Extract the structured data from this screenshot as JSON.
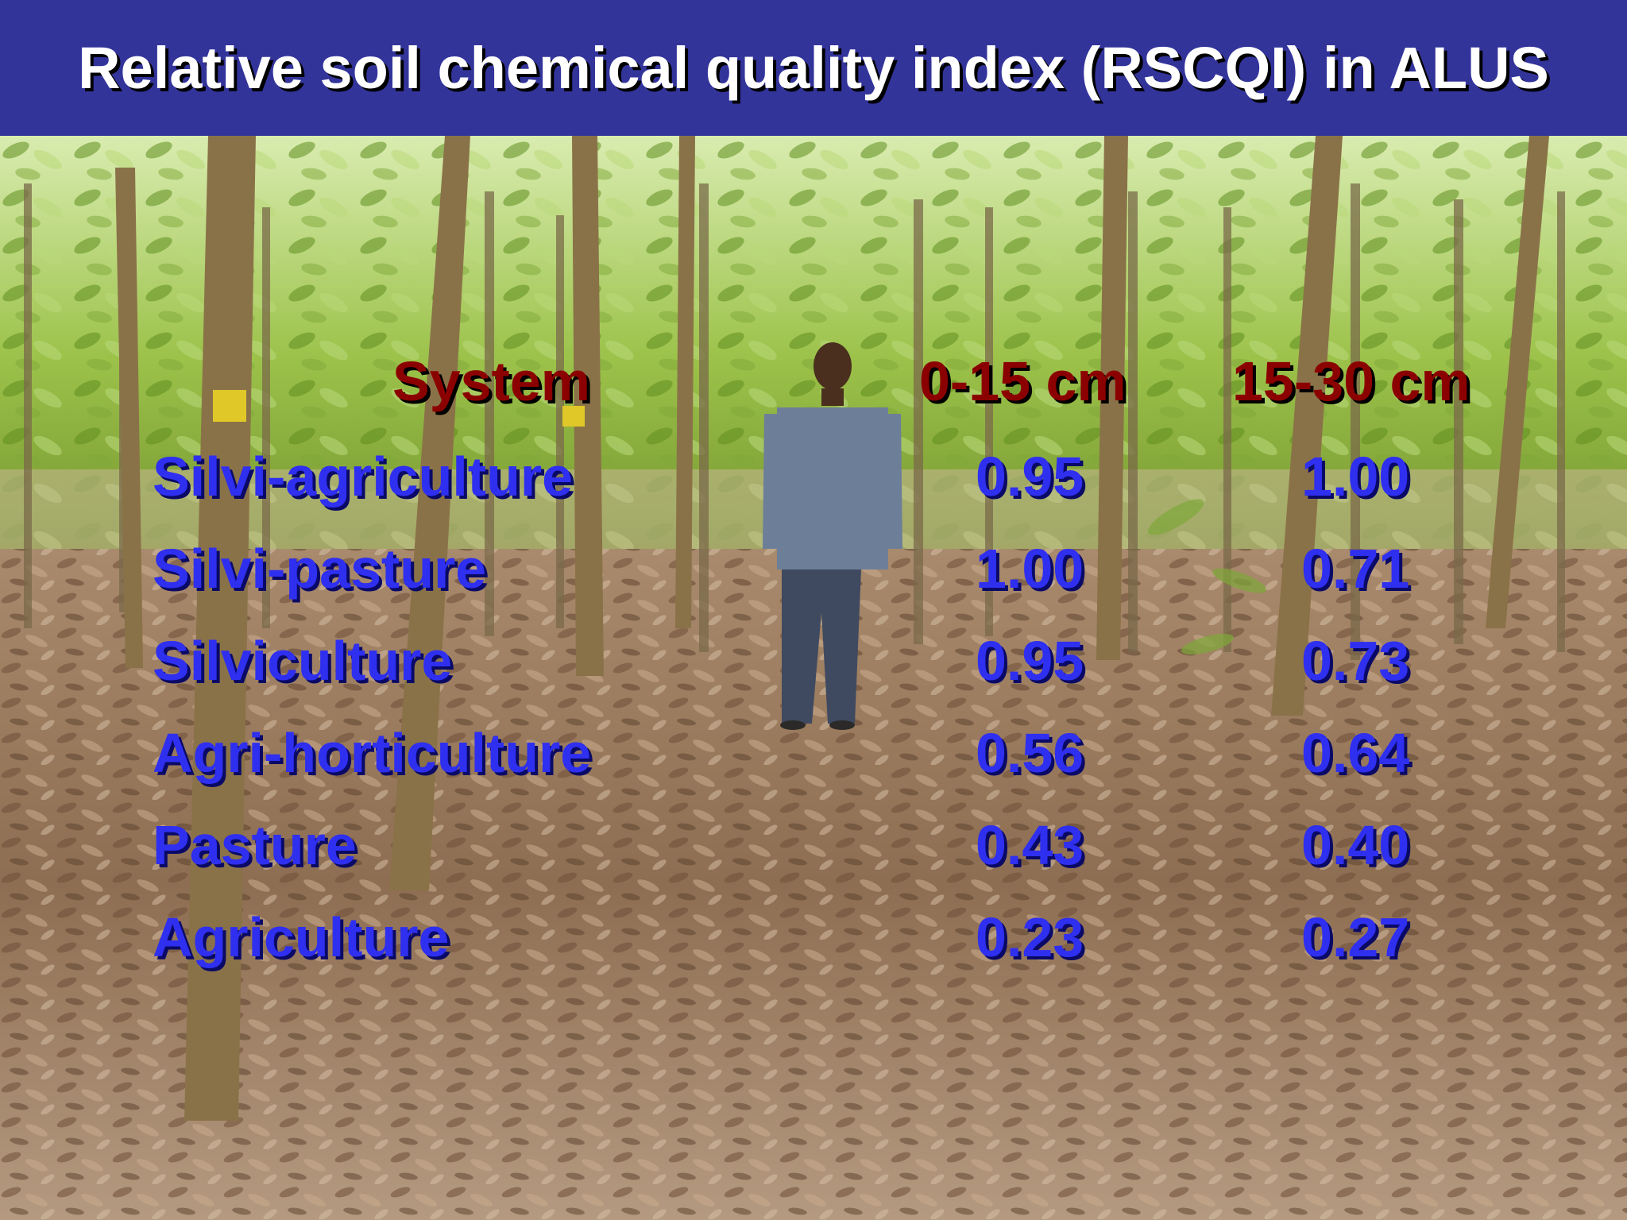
{
  "title": "Relative soil chemical quality index (RSCQI) in ALUS",
  "colors": {
    "banner": "#33349a",
    "title_text": "#ffffff",
    "header_text": "#8b0000",
    "value_text": "#2f2ff0"
  },
  "table": {
    "headers": {
      "system": "System",
      "depth_1": "0-15 cm",
      "depth_2": "15-30 cm"
    },
    "rows": [
      {
        "system": "Silvi-agriculture",
        "depth_1": "0.95",
        "depth_2": "1.00"
      },
      {
        "system": "Silvi-pasture",
        "depth_1": "1.00",
        "depth_2": "0.71"
      },
      {
        "system": "Silviculture",
        "depth_1": "0.95",
        "depth_2": "0.73"
      },
      {
        "system": "Agri-horticulture",
        "depth_1": "0.56",
        "depth_2": "0.64"
      },
      {
        "system": "Pasture",
        "depth_1": "0.43",
        "depth_2": "0.40"
      },
      {
        "system": "Agriculture",
        "depth_1": "0.23",
        "depth_2": "0.27"
      }
    ]
  }
}
